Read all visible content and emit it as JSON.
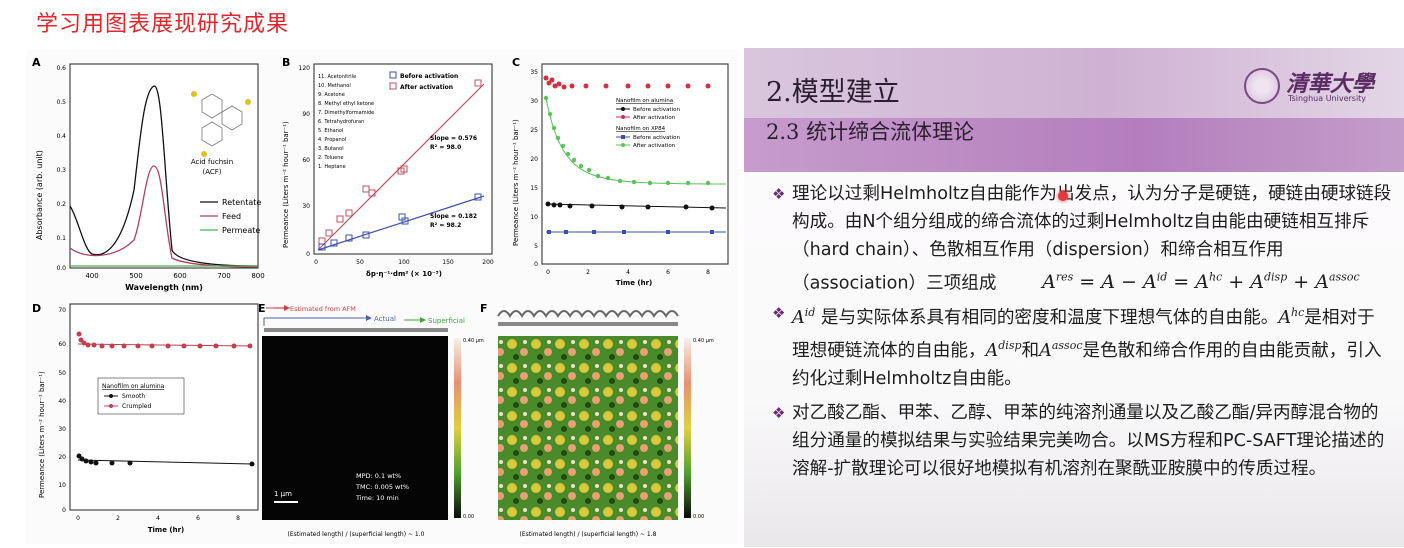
{
  "page_title": "学习用图表展现研究成果",
  "figure": {
    "panel_a": {
      "letter": "A",
      "ylabel": "Absorbance (arb. unit)",
      "xlabel": "Wavelength (nm)",
      "yticks": [
        "0.0",
        "0.1",
        "0.2",
        "0.3",
        "0.4",
        "0.5",
        "0.6"
      ],
      "xticks": [
        "400",
        "500",
        "600",
        "700",
        "800"
      ],
      "molecule_label_1": "Acid fuchsin",
      "molecule_label_2": "(ACF)",
      "legend": [
        "Retentate",
        "Feed",
        "Permeate"
      ]
    },
    "panel_b": {
      "letter": "B",
      "ylabel": "Permeance (Liters m⁻² hour⁻¹ bar⁻¹)",
      "xlabel": "δp·η⁻¹·dm² (× 10⁻³)",
      "yticks": [
        "0",
        "15",
        "30",
        "45",
        "60",
        "75",
        "90",
        "105",
        "120"
      ],
      "xticks": [
        "0",
        "50",
        "100",
        "150",
        "200"
      ],
      "solvents": [
        "11. Acetonitrile",
        "10. Methanol",
        "9. Acetone",
        "8. Methyl ethyl ketone",
        "7. Dimethylformamide",
        "6. Tetrahydrofuran",
        "5. Ethanol",
        "4. Propanol",
        "3. Butanol",
        "2. Toluene",
        "1. Heptane"
      ],
      "legend": [
        "Before activation",
        "After activation"
      ],
      "slope_after": "Slope = 0.576",
      "r2_after": "R² = 98.0",
      "slope_before": "Slope = 0.182",
      "r2_before": "R² = 98.2"
    },
    "panel_c": {
      "letter": "C",
      "ylabel": "Permeance (Liters m⁻² hour⁻¹ bar⁻¹)",
      "xlabel": "Time (hr)",
      "yticks": [
        "0",
        "5",
        "10",
        "15",
        "20",
        "25",
        "30",
        "35"
      ],
      "xticks": [
        "0",
        "2",
        "4",
        "6",
        "8"
      ],
      "legend_group1": "Nanofilm on alumina",
      "legend_group2": "Nanofilm on XP84",
      "legend": [
        "Before activation",
        "After activation",
        "Before activation",
        "After activation"
      ]
    },
    "panel_d": {
      "letter": "D",
      "ylabel": "Permeance (Liters m⁻² hour⁻¹ bar⁻¹)",
      "xlabel": "Time (hr)",
      "yticks": [
        "0",
        "10",
        "20",
        "30",
        "40",
        "50",
        "60",
        "70"
      ],
      "xticks": [
        "0",
        "2",
        "4",
        "6",
        "8"
      ],
      "legend_title": "Nanofilm on alumina",
      "legend": [
        "Smooth",
        "Crumpled"
      ]
    },
    "panel_e": {
      "letter": "E",
      "arrow_labels": [
        "Estimated from AFM",
        "Actual",
        "Superficial"
      ],
      "scale_bar": "1 μm",
      "info": [
        "MPD: 0.1 wt%",
        "TMC: 0.005 wt%",
        "Time: 10 min"
      ],
      "colorbar_top": "0.40 μm",
      "colorbar_bottom": "0.00",
      "caption": "(Estimated length) / (superficial length) ~ 1.0"
    },
    "panel_f": {
      "letter": "F",
      "colorbar_top": "0.40 μm",
      "colorbar_bottom": "0.00",
      "caption": "(Estimated length) / (superficial length) ~ 1.8"
    }
  },
  "slide": {
    "heading": "2.模型建立",
    "subheading": "2.3 统计缔合流体理论",
    "logo_cn": "清華大學",
    "logo_en": "Tsinghua University",
    "bullet1": "理论以过剩Helmholtz自由能作为出发点，认为分子是硬链，硬链由硬球链段构成。由N个组分组成的缔合流体的过剩Helmholtz自由能由硬链相互排斥（hard chain）、色散相互作用（dispersion）和缔合相互作用（association）三项组成",
    "bullet2": "是与实际体系具有相同的密度和温度下理想气体的自由能。",
    "bullet2_b": "是相对于理想硬链流体的自由能，",
    "bullet2_and": "和",
    "bullet2_c": "是色散和缔合作用的自由能贡献，引入约化过剩Helmholtz自由能。",
    "bullet3": "对乙酸乙酯、甲苯、乙醇、甲苯的纯溶剂通量以及乙酸乙酯/异丙醇混合物的组分通量的模拟结果与实验结果完美吻合。以MS方程和PC-SAFT理论描述的溶解-扩散理论可以很好地模拟有机溶剂在聚酰亚胺膜中的传质过程。"
  }
}
